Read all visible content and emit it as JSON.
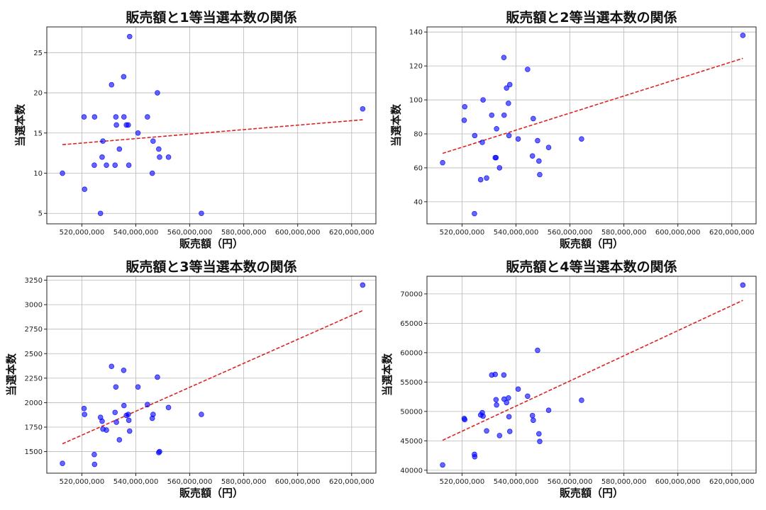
{
  "chart_data": [
    {
      "type": "scatter",
      "title": "販売額と1等当選本数の関係",
      "xlabel": "販売額（円）",
      "ylabel": "当選本数",
      "xlim": [
        507000000,
        629000000
      ],
      "ylim": [
        3.7,
        28.2
      ],
      "xticks": [
        520000000,
        540000000,
        560000000,
        580000000,
        600000000,
        620000000
      ],
      "xtick_labels": [
        "520,000,000",
        "540,000,000",
        "560,000,000",
        "580,000,000",
        "600,000,000",
        "620,000,000"
      ],
      "yticks": [
        5,
        10,
        15,
        20,
        25
      ],
      "ytick_labels": [
        "5",
        "10",
        "15",
        "20",
        "25"
      ],
      "grid": true,
      "point_color": "#0000ff",
      "trend_color": "#dd2222",
      "x": [
        512800000,
        520800000,
        521000000,
        524600000,
        524700000,
        526900000,
        527500000,
        527800000,
        529100000,
        531000000,
        532300000,
        532600000,
        532800000,
        533900000,
        535500000,
        535600000,
        536500000,
        537200000,
        537400000,
        537700000,
        540800000,
        544300000,
        546100000,
        546400000,
        548000000,
        548500000,
        548800000,
        552100000,
        564300000,
        624100000
      ],
      "y": [
        10,
        17,
        8,
        11,
        17,
        5,
        12,
        14,
        11,
        21,
        11,
        17,
        16,
        13,
        22,
        17,
        16,
        16,
        11,
        27,
        15,
        17,
        10,
        14,
        20,
        13,
        12,
        12,
        5,
        18
      ],
      "trend": {
        "x": [
          512800000,
          624100000
        ],
        "y": [
          13.55,
          16.65
        ]
      }
    },
    {
      "type": "scatter",
      "title": "販売額と2等当選本数の関係",
      "xlabel": "販売額（円）",
      "ylabel": "当選本数",
      "xlim": [
        507000000,
        629000000
      ],
      "ylim": [
        27,
        143
      ],
      "xticks": [
        520000000,
        540000000,
        560000000,
        580000000,
        600000000,
        620000000
      ],
      "xtick_labels": [
        "520,000,000",
        "540,000,000",
        "560,000,000",
        "580,000,000",
        "600,000,000",
        "620,000,000"
      ],
      "yticks": [
        40,
        60,
        80,
        100,
        120,
        140
      ],
      "ytick_labels": [
        "40",
        "60",
        "80",
        "100",
        "120",
        "140"
      ],
      "grid": true,
      "point_color": "#0000ff",
      "trend_color": "#dd2222",
      "x": [
        512800000,
        520800000,
        521000000,
        524600000,
        524700000,
        526900000,
        527500000,
        527800000,
        529100000,
        531000000,
        532300000,
        532600000,
        532800000,
        533900000,
        535500000,
        535600000,
        536500000,
        537200000,
        537400000,
        537700000,
        540800000,
        544300000,
        546100000,
        546400000,
        548000000,
        548500000,
        548800000,
        552100000,
        564300000,
        624100000
      ],
      "y": [
        63,
        88,
        96,
        33,
        79,
        53,
        75,
        100,
        54,
        91,
        66,
        66,
        83,
        60,
        125,
        91,
        107,
        98,
        79,
        109,
        77,
        118,
        67,
        89,
        76,
        64,
        56,
        72,
        77,
        138
      ],
      "trend": {
        "x": [
          512800000,
          624100000
        ],
        "y": [
          68.5,
          124.5
        ]
      }
    },
    {
      "type": "scatter",
      "title": "販売額と3等当選本数の関係",
      "xlabel": "販売額（円）",
      "ylabel": "当選本数",
      "xlim": [
        507000000,
        629000000
      ],
      "ylim": [
        1280,
        3290
      ],
      "xticks": [
        520000000,
        540000000,
        560000000,
        580000000,
        600000000,
        620000000
      ],
      "xtick_labels": [
        "520,000,000",
        "540,000,000",
        "560,000,000",
        "580,000,000",
        "600,000,000",
        "620,000,000"
      ],
      "yticks": [
        1500,
        1750,
        2000,
        2250,
        2500,
        2750,
        3000,
        3250
      ],
      "ytick_labels": [
        "1500",
        "1750",
        "2000",
        "2250",
        "2500",
        "2750",
        "3000",
        "3250"
      ],
      "grid": true,
      "point_color": "#0000ff",
      "trend_color": "#dd2222",
      "x": [
        512800000,
        520800000,
        521000000,
        524600000,
        524700000,
        526900000,
        527500000,
        527800000,
        529100000,
        531000000,
        532300000,
        532600000,
        532800000,
        533900000,
        535500000,
        535600000,
        536500000,
        537200000,
        537400000,
        537700000,
        540800000,
        544300000,
        546100000,
        546400000,
        548000000,
        548500000,
        548800000,
        552100000,
        564300000,
        624100000
      ],
      "y": [
        1380,
        1940,
        1880,
        1470,
        1370,
        1850,
        1810,
        1730,
        1720,
        2370,
        1900,
        2160,
        1800,
        1620,
        2330,
        1970,
        1870,
        1880,
        1820,
        1710,
        2160,
        1980,
        1840,
        1880,
        2260,
        1490,
        1500,
        1950,
        1880,
        3200
      ],
      "trend": {
        "x": [
          512800000,
          624100000
        ],
        "y": [
          1580,
          2940
        ]
      }
    },
    {
      "type": "scatter",
      "title": "販売額と4等当選本数の関係",
      "xlabel": "販売額（円）",
      "ylabel": "当選本数",
      "xlim": [
        507000000,
        629000000
      ],
      "ylim": [
        39500,
        73000
      ],
      "xticks": [
        520000000,
        540000000,
        560000000,
        580000000,
        600000000,
        620000000
      ],
      "xtick_labels": [
        "520,000,000",
        "540,000,000",
        "560,000,000",
        "580,000,000",
        "600,000,000",
        "620,000,000"
      ],
      "yticks": [
        40000,
        45000,
        50000,
        55000,
        60000,
        65000,
        70000
      ],
      "ytick_labels": [
        "40000",
        "45000",
        "50000",
        "55000",
        "60000",
        "65000",
        "70000"
      ],
      "grid": true,
      "point_color": "#0000ff",
      "trend_color": "#dd2222",
      "x": [
        512800000,
        520800000,
        521000000,
        524600000,
        524700000,
        526900000,
        527500000,
        527800000,
        529100000,
        531000000,
        532300000,
        532600000,
        532800000,
        533900000,
        535500000,
        535600000,
        536500000,
        537200000,
        537400000,
        537700000,
        540800000,
        544300000,
        546100000,
        546400000,
        548000000,
        548500000,
        548800000,
        552100000,
        564300000,
        624100000
      ],
      "y": [
        40900,
        48800,
        48600,
        42700,
        42300,
        49400,
        49800,
        49200,
        46700,
        56200,
        56300,
        52000,
        51100,
        45900,
        56200,
        52100,
        51500,
        52300,
        49100,
        46600,
        53800,
        52600,
        49300,
        48500,
        60400,
        46200,
        44900,
        50200,
        51900,
        71500
      ],
      "trend": {
        "x": [
          512800000,
          624100000
        ],
        "y": [
          45100,
          68900
        ]
      }
    }
  ]
}
